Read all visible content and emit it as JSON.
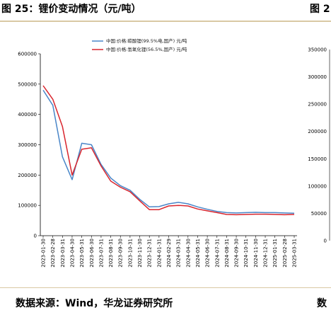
{
  "header": {
    "title": "图 25：锂价变动情况（元/吨）",
    "title_next_fragment": "图 2"
  },
  "footer": {
    "source": "数据来源：Wind，华龙证券研究所",
    "source_next_fragment": "数"
  },
  "chart_data": {
    "type": "line",
    "title": "",
    "xlabel": "",
    "ylabel": "",
    "ylim": [
      0,
      600000
    ],
    "yticks": [
      "0",
      "100000",
      "200000",
      "300000",
      "400000",
      "500000",
      "600000"
    ],
    "x": [
      "2023-01-30",
      "2023-02-28",
      "2023-03-31",
      "2023-04-30",
      "2023-05-31",
      "2023-06-30",
      "2023-07-31",
      "2023-08-31",
      "2023-09-30",
      "2023-10-31",
      "2023-11-30",
      "2023-12-31",
      "2024-01-31",
      "2024-02-29",
      "2024-03-31",
      "2024-04-30",
      "2024-05-31",
      "2024-06-30",
      "2024-07-31",
      "2024-08-31",
      "2024-09-30",
      "2024-10-31",
      "2024-11-30",
      "2024-12-31",
      "2025-01-31",
      "2025-02-28",
      "2025-03-31"
    ],
    "grid": false,
    "legend_position": "top",
    "series": [
      {
        "name": "中国:价格:碳酸锂(99.5%电,国产) 元/吨",
        "color": "#4a86c8",
        "values": [
          480000,
          430000,
          260000,
          185000,
          305000,
          300000,
          235000,
          190000,
          165000,
          150000,
          120000,
          95000,
          96000,
          105000,
          110000,
          105000,
          95000,
          87000,
          80000,
          76000,
          75000,
          76000,
          77000,
          76000,
          76000,
          75000,
          74000
        ]
      },
      {
        "name": "中国:价格:氢氧化锂(56.5%,国产) 元/吨",
        "color": "#d9262e",
        "values": [
          495000,
          450000,
          360000,
          200000,
          285000,
          290000,
          230000,
          180000,
          160000,
          145000,
          115000,
          86000,
          86000,
          98000,
          100000,
          98000,
          88000,
          82000,
          76000,
          70000,
          69000,
          70000,
          71000,
          71000,
          70000,
          69000,
          70000
        ]
      }
    ]
  },
  "right_chart_fragment": {
    "yticks": [
      "0",
      "50000",
      "100000",
      "150000",
      "200000",
      "250000",
      "300000",
      "350000"
    ]
  }
}
